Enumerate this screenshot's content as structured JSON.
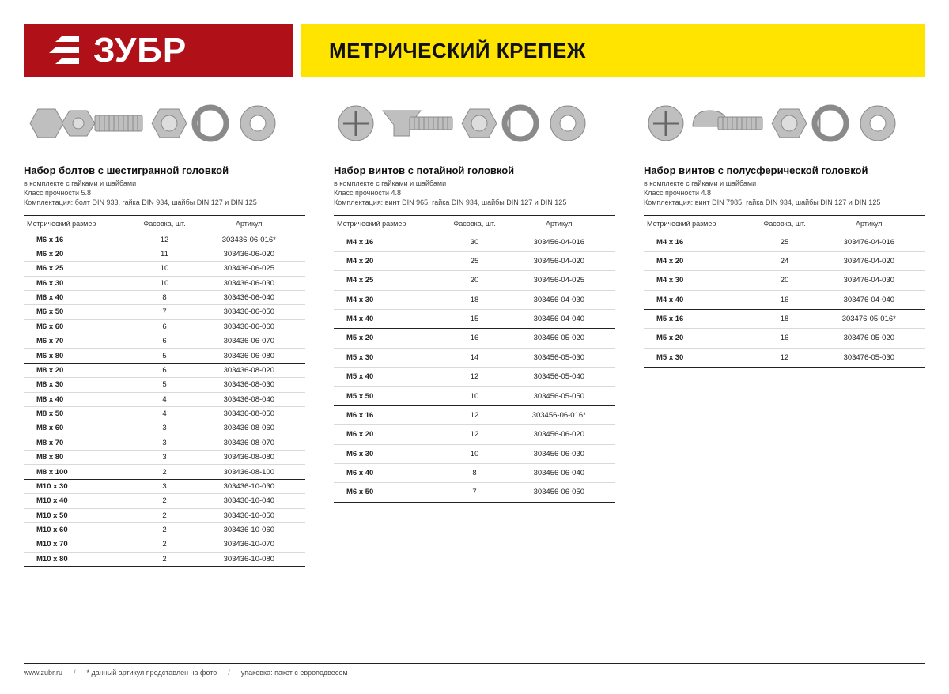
{
  "brand": {
    "name": "ЗУБР"
  },
  "page_title": "МЕТРИЧЕСКИЙ КРЕПЕЖ",
  "col_headers": [
    "Метрический размер",
    "Фасовка, шт.",
    "Артикул"
  ],
  "sections": [
    {
      "id": "hex",
      "title": "Набор болтов с шестигранной головкой",
      "sub1": "в комплекте с гайками и шайбами",
      "sub2": "Класс прочности 5.8",
      "sub3": "Комплектация: болт DIN 933, гайка DIN 934, шайбы DIN 127 и DIN 125",
      "rows": [
        {
          "size": "M6 x 16",
          "qty": "12",
          "art": "303436-06-016*"
        },
        {
          "size": "M6 x 20",
          "qty": "11",
          "art": "303436-06-020"
        },
        {
          "size": "M6 x 25",
          "qty": "10",
          "art": "303436-06-025"
        },
        {
          "size": "M6 x 30",
          "qty": "10",
          "art": "303436-06-030"
        },
        {
          "size": "M6 x 40",
          "qty": "8",
          "art": "303436-06-040"
        },
        {
          "size": "M6 x 50",
          "qty": "7",
          "art": "303436-06-050"
        },
        {
          "size": "M6 x 60",
          "qty": "6",
          "art": "303436-06-060"
        },
        {
          "size": "M6 x 70",
          "qty": "6",
          "art": "303436-06-070"
        },
        {
          "size": "M6 x 80",
          "qty": "5",
          "art": "303436-06-080",
          "sep": true
        },
        {
          "size": "M8 x 20",
          "qty": "6",
          "art": "303436-08-020"
        },
        {
          "size": "M8 x 30",
          "qty": "5",
          "art": "303436-08-030"
        },
        {
          "size": "M8 x 40",
          "qty": "4",
          "art": "303436-08-040"
        },
        {
          "size": "M8 x 50",
          "qty": "4",
          "art": "303436-08-050"
        },
        {
          "size": "M8 x 60",
          "qty": "3",
          "art": "303436-08-060"
        },
        {
          "size": "M8 x 70",
          "qty": "3",
          "art": "303436-08-070"
        },
        {
          "size": "M8 x 80",
          "qty": "3",
          "art": "303436-08-080"
        },
        {
          "size": "M8 x 100",
          "qty": "2",
          "art": "303436-08-100",
          "sep": true
        },
        {
          "size": "M10 x 30",
          "qty": "3",
          "art": "303436-10-030"
        },
        {
          "size": "M10 x 40",
          "qty": "2",
          "art": "303436-10-040"
        },
        {
          "size": "M10 x 50",
          "qty": "2",
          "art": "303436-10-050"
        },
        {
          "size": "M10 x 60",
          "qty": "2",
          "art": "303436-10-060"
        },
        {
          "size": "M10 x 70",
          "qty": "2",
          "art": "303436-10-070"
        },
        {
          "size": "M10 x 80",
          "qty": "2",
          "art": "303436-10-080",
          "last": true
        }
      ]
    },
    {
      "id": "counter",
      "title": "Набор винтов с потайной головкой",
      "sub1": "в комплекте с гайками и шайбами",
      "sub2": "Класс прочности 4.8",
      "sub3": "Комплектация: винт DIN 965, гайка DIN 934, шайбы DIN 127 и DIN 125",
      "rows": [
        {
          "size": "M4 x 16",
          "qty": "30",
          "art": "303456-04-016"
        },
        {
          "size": "M4 x 20",
          "qty": "25",
          "art": "303456-04-020"
        },
        {
          "size": "M4 x 25",
          "qty": "20",
          "art": "303456-04-025"
        },
        {
          "size": "M4 x 30",
          "qty": "18",
          "art": "303456-04-030"
        },
        {
          "size": "M4 x 40",
          "qty": "15",
          "art": "303456-04-040",
          "sep": true
        },
        {
          "size": "M5 x 20",
          "qty": "16",
          "art": "303456-05-020"
        },
        {
          "size": "M5 x 30",
          "qty": "14",
          "art": "303456-05-030"
        },
        {
          "size": "M5 x 40",
          "qty": "12",
          "art": "303456-05-040"
        },
        {
          "size": "M5 x 50",
          "qty": "10",
          "art": "303456-05-050",
          "sep": true
        },
        {
          "size": "M6 x 16",
          "qty": "12",
          "art": "303456-06-016*"
        },
        {
          "size": "M6 x 20",
          "qty": "12",
          "art": "303456-06-020"
        },
        {
          "size": "M6 x 30",
          "qty": "10",
          "art": "303456-06-030"
        },
        {
          "size": "M6 x 40",
          "qty": "8",
          "art": "303456-06-040"
        },
        {
          "size": "M6 x 50",
          "qty": "7",
          "art": "303456-06-050",
          "last": true
        }
      ]
    },
    {
      "id": "pan",
      "title": "Набор винтов с полусферической головкой",
      "sub1": "в комплекте с гайками и шайбами",
      "sub2": "Класс прочности 4.8",
      "sub3": "Комплектация: винт DIN 7985, гайка DIN 934, шайбы DIN 127 и DIN 125",
      "rows": [
        {
          "size": "M4 x 16",
          "qty": "25",
          "art": "303476-04-016"
        },
        {
          "size": "M4 x 20",
          "qty": "24",
          "art": "303476-04-020"
        },
        {
          "size": "M4 x 30",
          "qty": "20",
          "art": "303476-04-030"
        },
        {
          "size": "M4 x 40",
          "qty": "16",
          "art": "303476-04-040",
          "sep": true
        },
        {
          "size": "M5 x 16",
          "qty": "18",
          "art": "303476-05-016*"
        },
        {
          "size": "M5 x 20",
          "qty": "16",
          "art": "303476-05-020"
        },
        {
          "size": "M5 x 30",
          "qty": "12",
          "art": "303476-05-030",
          "last": true
        }
      ]
    }
  ],
  "footer": {
    "site": "www.zubr.ru",
    "note_asterisk": "* данный артикул представлен на фото",
    "note_pack": "упаковка: пакет с европодвесом"
  },
  "colors": {
    "brand_red": "#b01119",
    "brand_yellow": "#ffe400",
    "rule": "#222222",
    "row_rule": "#d9d9d9",
    "text": "#111111",
    "muted": "#444444"
  }
}
